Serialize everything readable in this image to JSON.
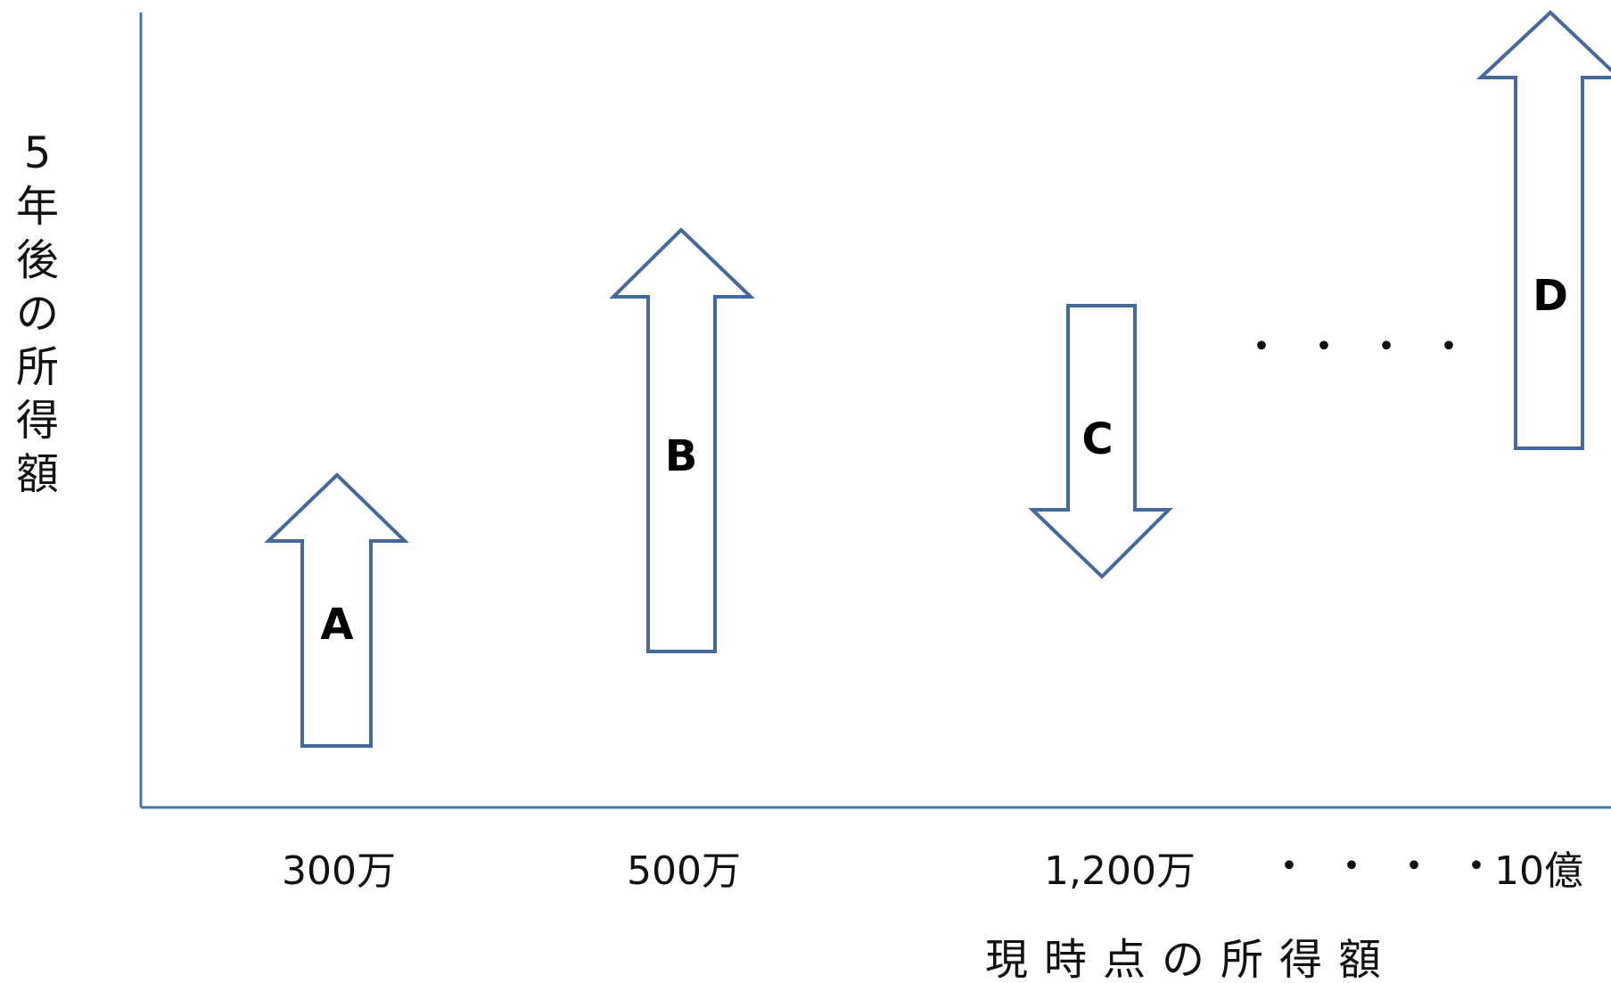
{
  "diagram": {
    "y_axis_title_chars": [
      "5",
      "年",
      "後",
      "の",
      "所",
      "得",
      "額"
    ],
    "x_axis_title": "現時点の所得額",
    "x_ticks": [
      "300万",
      "500万",
      "1,200万",
      "10億"
    ],
    "ellipsis_dots": "・・・・",
    "axis_color": "#4a76a8",
    "arrow_stroke_color": "#44699a",
    "arrows": [
      {
        "label": "A",
        "direction": "up"
      },
      {
        "label": "B",
        "direction": "up"
      },
      {
        "label": "C",
        "direction": "down"
      },
      {
        "label": "D",
        "direction": "up"
      }
    ]
  }
}
